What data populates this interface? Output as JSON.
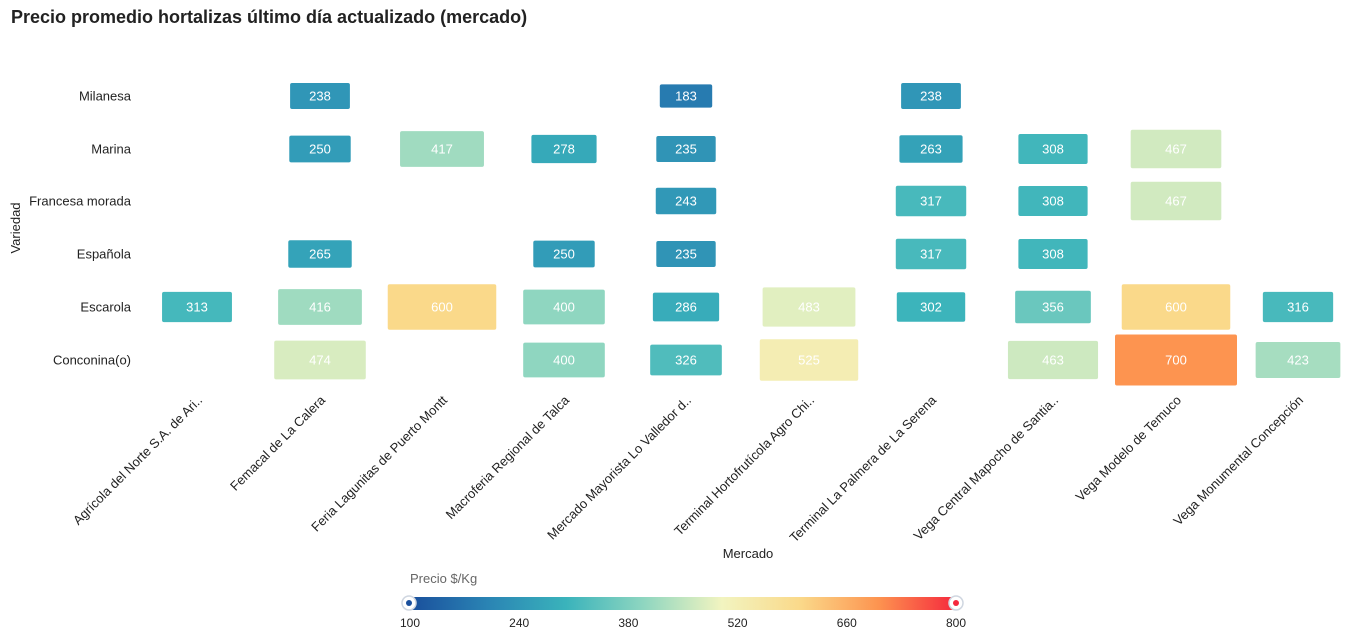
{
  "chart_data": {
    "type": "heatmap",
    "title": "Precio promedio hortalizas último día actualizado (mercado)",
    "xlabel": "Mercado",
    "ylabel": "Variedad",
    "x_categories": [
      "Agrícola del Norte S.A. de Ari..",
      "Femacal de La Calera",
      "Feria Lagunitas de Puerto Montt",
      "Macroferia Regional de Talca",
      "Mercado Mayorista Lo Valledor d..",
      "Terminal Hortofrutícola Agro Chi..",
      "Terminal La Palmera de La Serena",
      "Vega Central Mapocho de Santia..",
      "Vega Modelo de Temuco",
      "Vega Monumental Concepción"
    ],
    "y_categories": [
      "Milanesa",
      "Marina",
      "Francesa morada",
      "Española",
      "Escarola",
      "Conconina(o)"
    ],
    "values": [
      [
        null,
        238,
        null,
        null,
        183,
        null,
        238,
        null,
        null,
        null
      ],
      [
        null,
        250,
        417,
        278,
        235,
        null,
        263,
        308,
        467,
        null
      ],
      [
        null,
        null,
        null,
        null,
        243,
        null,
        317,
        308,
        467,
        null
      ],
      [
        null,
        265,
        null,
        250,
        235,
        null,
        317,
        308,
        null,
        null
      ],
      [
        313,
        416,
        600,
        400,
        286,
        483,
        302,
        356,
        600,
        316
      ],
      [
        null,
        474,
        null,
        400,
        326,
        525,
        null,
        463,
        700,
        423
      ]
    ],
    "color_scale": {
      "title": "Precio $/Kg",
      "min": 100,
      "max": 800,
      "ticks": [
        "100",
        "240",
        "380",
        "520",
        "660",
        "800"
      ],
      "stops": [
        "#1a4f9c",
        "#2a84b4",
        "#3ab3bb",
        "#8fd6c0",
        "#f2f4c0",
        "#fad98a",
        "#fd9450",
        "#f5283d"
      ]
    }
  }
}
